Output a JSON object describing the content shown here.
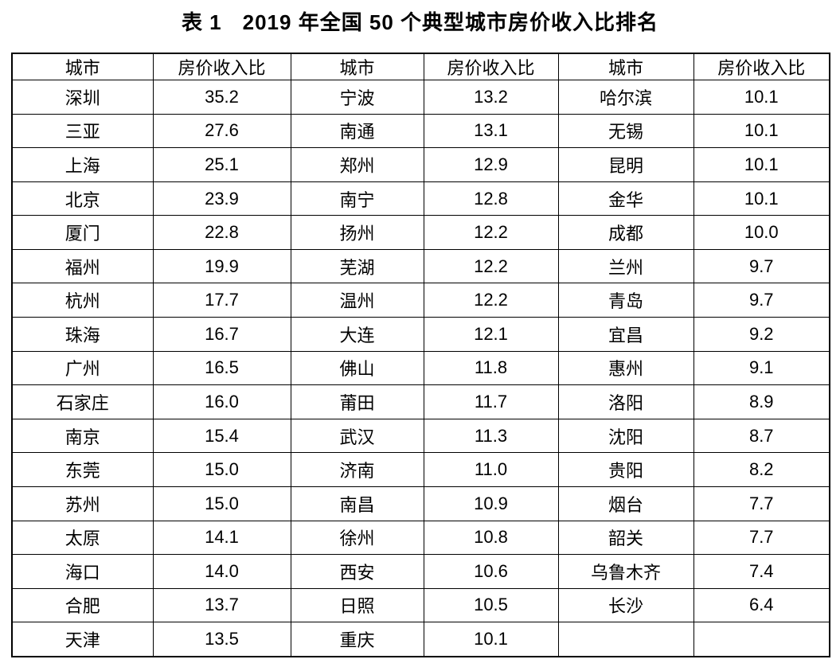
{
  "title": {
    "label": "表 1",
    "text": "2019 年全国 50 个典型城市房价收入比排名"
  },
  "table": {
    "column_headers": [
      "城市",
      "房价收入比",
      "城市",
      "房价收入比",
      "城市",
      "房价收入比"
    ],
    "rows": [
      [
        "深圳",
        "35.2",
        "宁波",
        "13.2",
        "哈尔滨",
        "10.1"
      ],
      [
        "三亚",
        "27.6",
        "南通",
        "13.1",
        "无锡",
        "10.1"
      ],
      [
        "上海",
        "25.1",
        "郑州",
        "12.9",
        "昆明",
        "10.1"
      ],
      [
        "北京",
        "23.9",
        "南宁",
        "12.8",
        "金华",
        "10.1"
      ],
      [
        "厦门",
        "22.8",
        "扬州",
        "12.2",
        "成都",
        "10.0"
      ],
      [
        "福州",
        "19.9",
        "芜湖",
        "12.2",
        "兰州",
        "9.7"
      ],
      [
        "杭州",
        "17.7",
        "温州",
        "12.2",
        "青岛",
        "9.7"
      ],
      [
        "珠海",
        "16.7",
        "大连",
        "12.1",
        "宜昌",
        "9.2"
      ],
      [
        "广州",
        "16.5",
        "佛山",
        "11.8",
        "惠州",
        "9.1"
      ],
      [
        "石家庄",
        "16.0",
        "莆田",
        "11.7",
        "洛阳",
        "8.9"
      ],
      [
        "南京",
        "15.4",
        "武汉",
        "11.3",
        "沈阳",
        "8.7"
      ],
      [
        "东莞",
        "15.0",
        "济南",
        "11.0",
        "贵阳",
        "8.2"
      ],
      [
        "苏州",
        "15.0",
        "南昌",
        "10.9",
        "烟台",
        "7.7"
      ],
      [
        "太原",
        "14.1",
        "徐州",
        "10.8",
        "韶关",
        "7.7"
      ],
      [
        "海口",
        "14.0",
        "西安",
        "10.6",
        "乌鲁木齐",
        "7.4"
      ],
      [
        "合肥",
        "13.7",
        "日照",
        "10.5",
        "长沙",
        "6.4"
      ],
      [
        "天津",
        "13.5",
        "重庆",
        "10.1",
        "",
        ""
      ]
    ]
  },
  "colors": {
    "text": "#000000",
    "border": "#000000",
    "background": "#ffffff"
  }
}
